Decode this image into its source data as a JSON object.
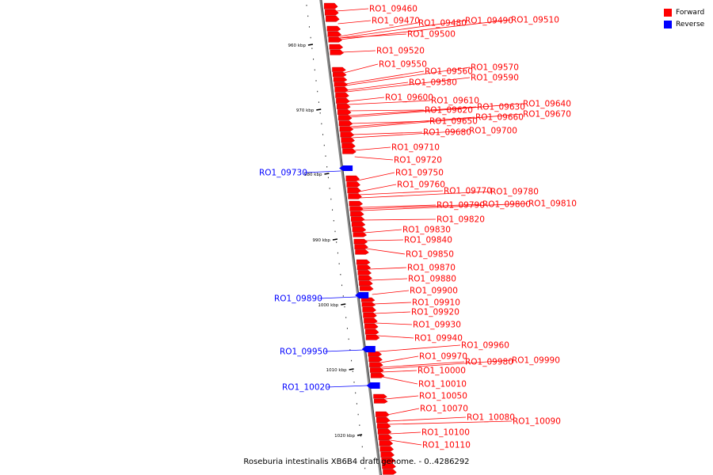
{
  "legend": {
    "forward_label": "Forward",
    "reverse_label": "Reverse",
    "forward_color": "#ff0000",
    "reverse_color": "#0000ff"
  },
  "caption": "Roseburia intestinalis XB6B4 draft genome. - 0..4286292",
  "axis": {
    "ticks": [
      "960 kbp",
      "970 kbp",
      "980 kbp",
      "990 kbp",
      "1000 kbp",
      "1010 kbp",
      "1020 kbp"
    ]
  },
  "genes": [
    {
      "id": "RO1_09460",
      "strand": "forward"
    },
    {
      "id": "RO1_09470",
      "strand": "forward"
    },
    {
      "id": "RO1_09480",
      "strand": "forward"
    },
    {
      "id": "RO1_09490",
      "strand": "forward"
    },
    {
      "id": "RO1_09510",
      "strand": "forward"
    },
    {
      "id": "RO1_09500",
      "strand": "forward"
    },
    {
      "id": "RO1_09520",
      "strand": "forward"
    },
    {
      "id": "RO1_09550",
      "strand": "forward"
    },
    {
      "id": "RO1_09560",
      "strand": "forward"
    },
    {
      "id": "RO1_09570",
      "strand": "forward"
    },
    {
      "id": "RO1_09580",
      "strand": "forward"
    },
    {
      "id": "RO1_09590",
      "strand": "forward"
    },
    {
      "id": "RO1_09600",
      "strand": "forward"
    },
    {
      "id": "RO1_09610",
      "strand": "forward"
    },
    {
      "id": "RO1_09620",
      "strand": "forward"
    },
    {
      "id": "RO1_09630",
      "strand": "forward"
    },
    {
      "id": "RO1_09640",
      "strand": "forward"
    },
    {
      "id": "RO1_09650",
      "strand": "forward"
    },
    {
      "id": "RO1_09660",
      "strand": "forward"
    },
    {
      "id": "RO1_09670",
      "strand": "forward"
    },
    {
      "id": "RO1_09680",
      "strand": "forward"
    },
    {
      "id": "RO1_09700",
      "strand": "forward"
    },
    {
      "id": "RO1_09710",
      "strand": "forward"
    },
    {
      "id": "RO1_09720",
      "strand": "forward"
    },
    {
      "id": "RO1_09730",
      "strand": "reverse"
    },
    {
      "id": "RO1_09750",
      "strand": "forward"
    },
    {
      "id": "RO1_09760",
      "strand": "forward"
    },
    {
      "id": "RO1_09770",
      "strand": "forward"
    },
    {
      "id": "RO1_09780",
      "strand": "forward"
    },
    {
      "id": "RO1_09790",
      "strand": "forward"
    },
    {
      "id": "RO1_09800",
      "strand": "forward"
    },
    {
      "id": "RO1_09810",
      "strand": "forward"
    },
    {
      "id": "RO1_09820",
      "strand": "forward"
    },
    {
      "id": "RO1_09830",
      "strand": "forward"
    },
    {
      "id": "RO1_09840",
      "strand": "forward"
    },
    {
      "id": "RO1_09850",
      "strand": "forward"
    },
    {
      "id": "RO1_09870",
      "strand": "forward"
    },
    {
      "id": "RO1_09880",
      "strand": "forward"
    },
    {
      "id": "RO1_09890",
      "strand": "reverse"
    },
    {
      "id": "RO1_09900",
      "strand": "forward"
    },
    {
      "id": "RO1_09910",
      "strand": "forward"
    },
    {
      "id": "RO1_09920",
      "strand": "forward"
    },
    {
      "id": "RO1_09930",
      "strand": "forward"
    },
    {
      "id": "RO1_09940",
      "strand": "forward"
    },
    {
      "id": "RO1_09950",
      "strand": "reverse"
    },
    {
      "id": "RO1_09960",
      "strand": "forward"
    },
    {
      "id": "RO1_09970",
      "strand": "forward"
    },
    {
      "id": "RO1_09980",
      "strand": "forward"
    },
    {
      "id": "RO1_09990",
      "strand": "forward"
    },
    {
      "id": "RO1_10000",
      "strand": "forward"
    },
    {
      "id": "RO1_10010",
      "strand": "forward"
    },
    {
      "id": "RO1_10020",
      "strand": "reverse"
    },
    {
      "id": "RO1_10050",
      "strand": "forward"
    },
    {
      "id": "RO1_10070",
      "strand": "forward"
    },
    {
      "id": "RO1_10080",
      "strand": "forward"
    },
    {
      "id": "RO1_10090",
      "strand": "forward"
    },
    {
      "id": "RO1_10100",
      "strand": "forward"
    },
    {
      "id": "RO1_10110",
      "strand": "forward"
    }
  ]
}
